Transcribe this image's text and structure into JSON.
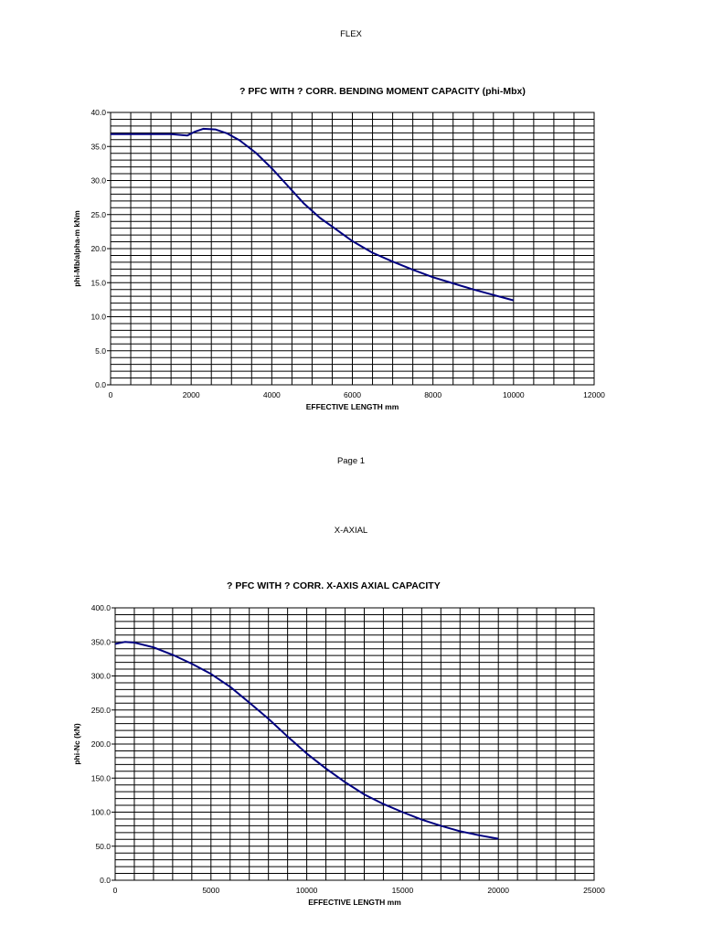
{
  "page": {
    "header1": "FLEX",
    "footer1": "Page 1",
    "header2": "X-AXIAL"
  },
  "chart_data": [
    {
      "type": "line",
      "title": "? PFC WITH ? CORR. BENDING MOMENT CAPACITY (phi-Mbx)",
      "xlabel": "EFFECTIVE LENGTH mm",
      "ylabel": "phi-Mb/alpha-m kNm",
      "xlim": [
        0,
        12000
      ],
      "ylim": [
        0,
        40
      ],
      "xticks": [
        0,
        2000,
        4000,
        6000,
        8000,
        10000,
        12000
      ],
      "xtick_labels": [
        "0",
        "2000",
        "4000",
        "6000",
        "8000",
        "10000",
        "12000"
      ],
      "yticks": [
        0,
        5,
        10,
        15,
        20,
        25,
        30,
        35,
        40
      ],
      "ytick_labels": [
        "0.0",
        "5.0",
        "10.0",
        "15.0",
        "20.0",
        "25.0",
        "30.0",
        "35.0",
        "40.0"
      ],
      "grid": true,
      "line_color": "#000080",
      "series": [
        {
          "x": [
            0,
            500,
            1000,
            1500,
            1900,
            2100,
            2300,
            2600,
            2900,
            3200,
            3600,
            4000,
            4400,
            4800,
            5200,
            5600,
            6000,
            6500,
            7000,
            7500,
            8000,
            8500,
            9000,
            9500,
            10000
          ],
          "values": [
            36.8,
            36.8,
            36.8,
            36.8,
            36.6,
            37.2,
            37.6,
            37.5,
            36.9,
            35.9,
            34.1,
            31.8,
            29.2,
            26.6,
            24.5,
            22.8,
            21.1,
            19.4,
            18.1,
            16.9,
            15.8,
            14.9,
            14.0,
            13.2,
            12.4
          ]
        }
      ]
    },
    {
      "type": "line",
      "title": "? PFC WITH ? CORR. X-AXIS AXIAL CAPACITY",
      "xlabel": "EFFECTIVE LENGTH mm",
      "ylabel": "phi-Nc (kN)",
      "xlim": [
        0,
        25000
      ],
      "ylim": [
        0,
        400
      ],
      "xticks": [
        0,
        5000,
        10000,
        15000,
        20000,
        25000
      ],
      "xtick_labels": [
        "0",
        "5000",
        "10000",
        "15000",
        "20000",
        "25000"
      ],
      "yticks": [
        0,
        50,
        100,
        150,
        200,
        250,
        300,
        350,
        400
      ],
      "ytick_labels": [
        "0.0",
        "50.0",
        "100.0",
        "150.0",
        "200.0",
        "250.0",
        "300.0",
        "350.0",
        "400.0"
      ],
      "grid": true,
      "line_color": "#000080",
      "series": [
        {
          "x": [
            0,
            500,
            1000,
            2000,
            3000,
            4000,
            5000,
            6000,
            7000,
            8000,
            9000,
            10000,
            11000,
            12000,
            13000,
            14000,
            15000,
            16000,
            17000,
            18000,
            19000,
            20000
          ],
          "values": [
            347,
            350,
            349,
            342,
            331,
            318,
            303,
            284,
            261,
            237,
            211,
            186,
            164,
            144,
            126,
            112,
            100,
            89,
            80,
            72,
            66,
            61
          ]
        }
      ]
    }
  ]
}
